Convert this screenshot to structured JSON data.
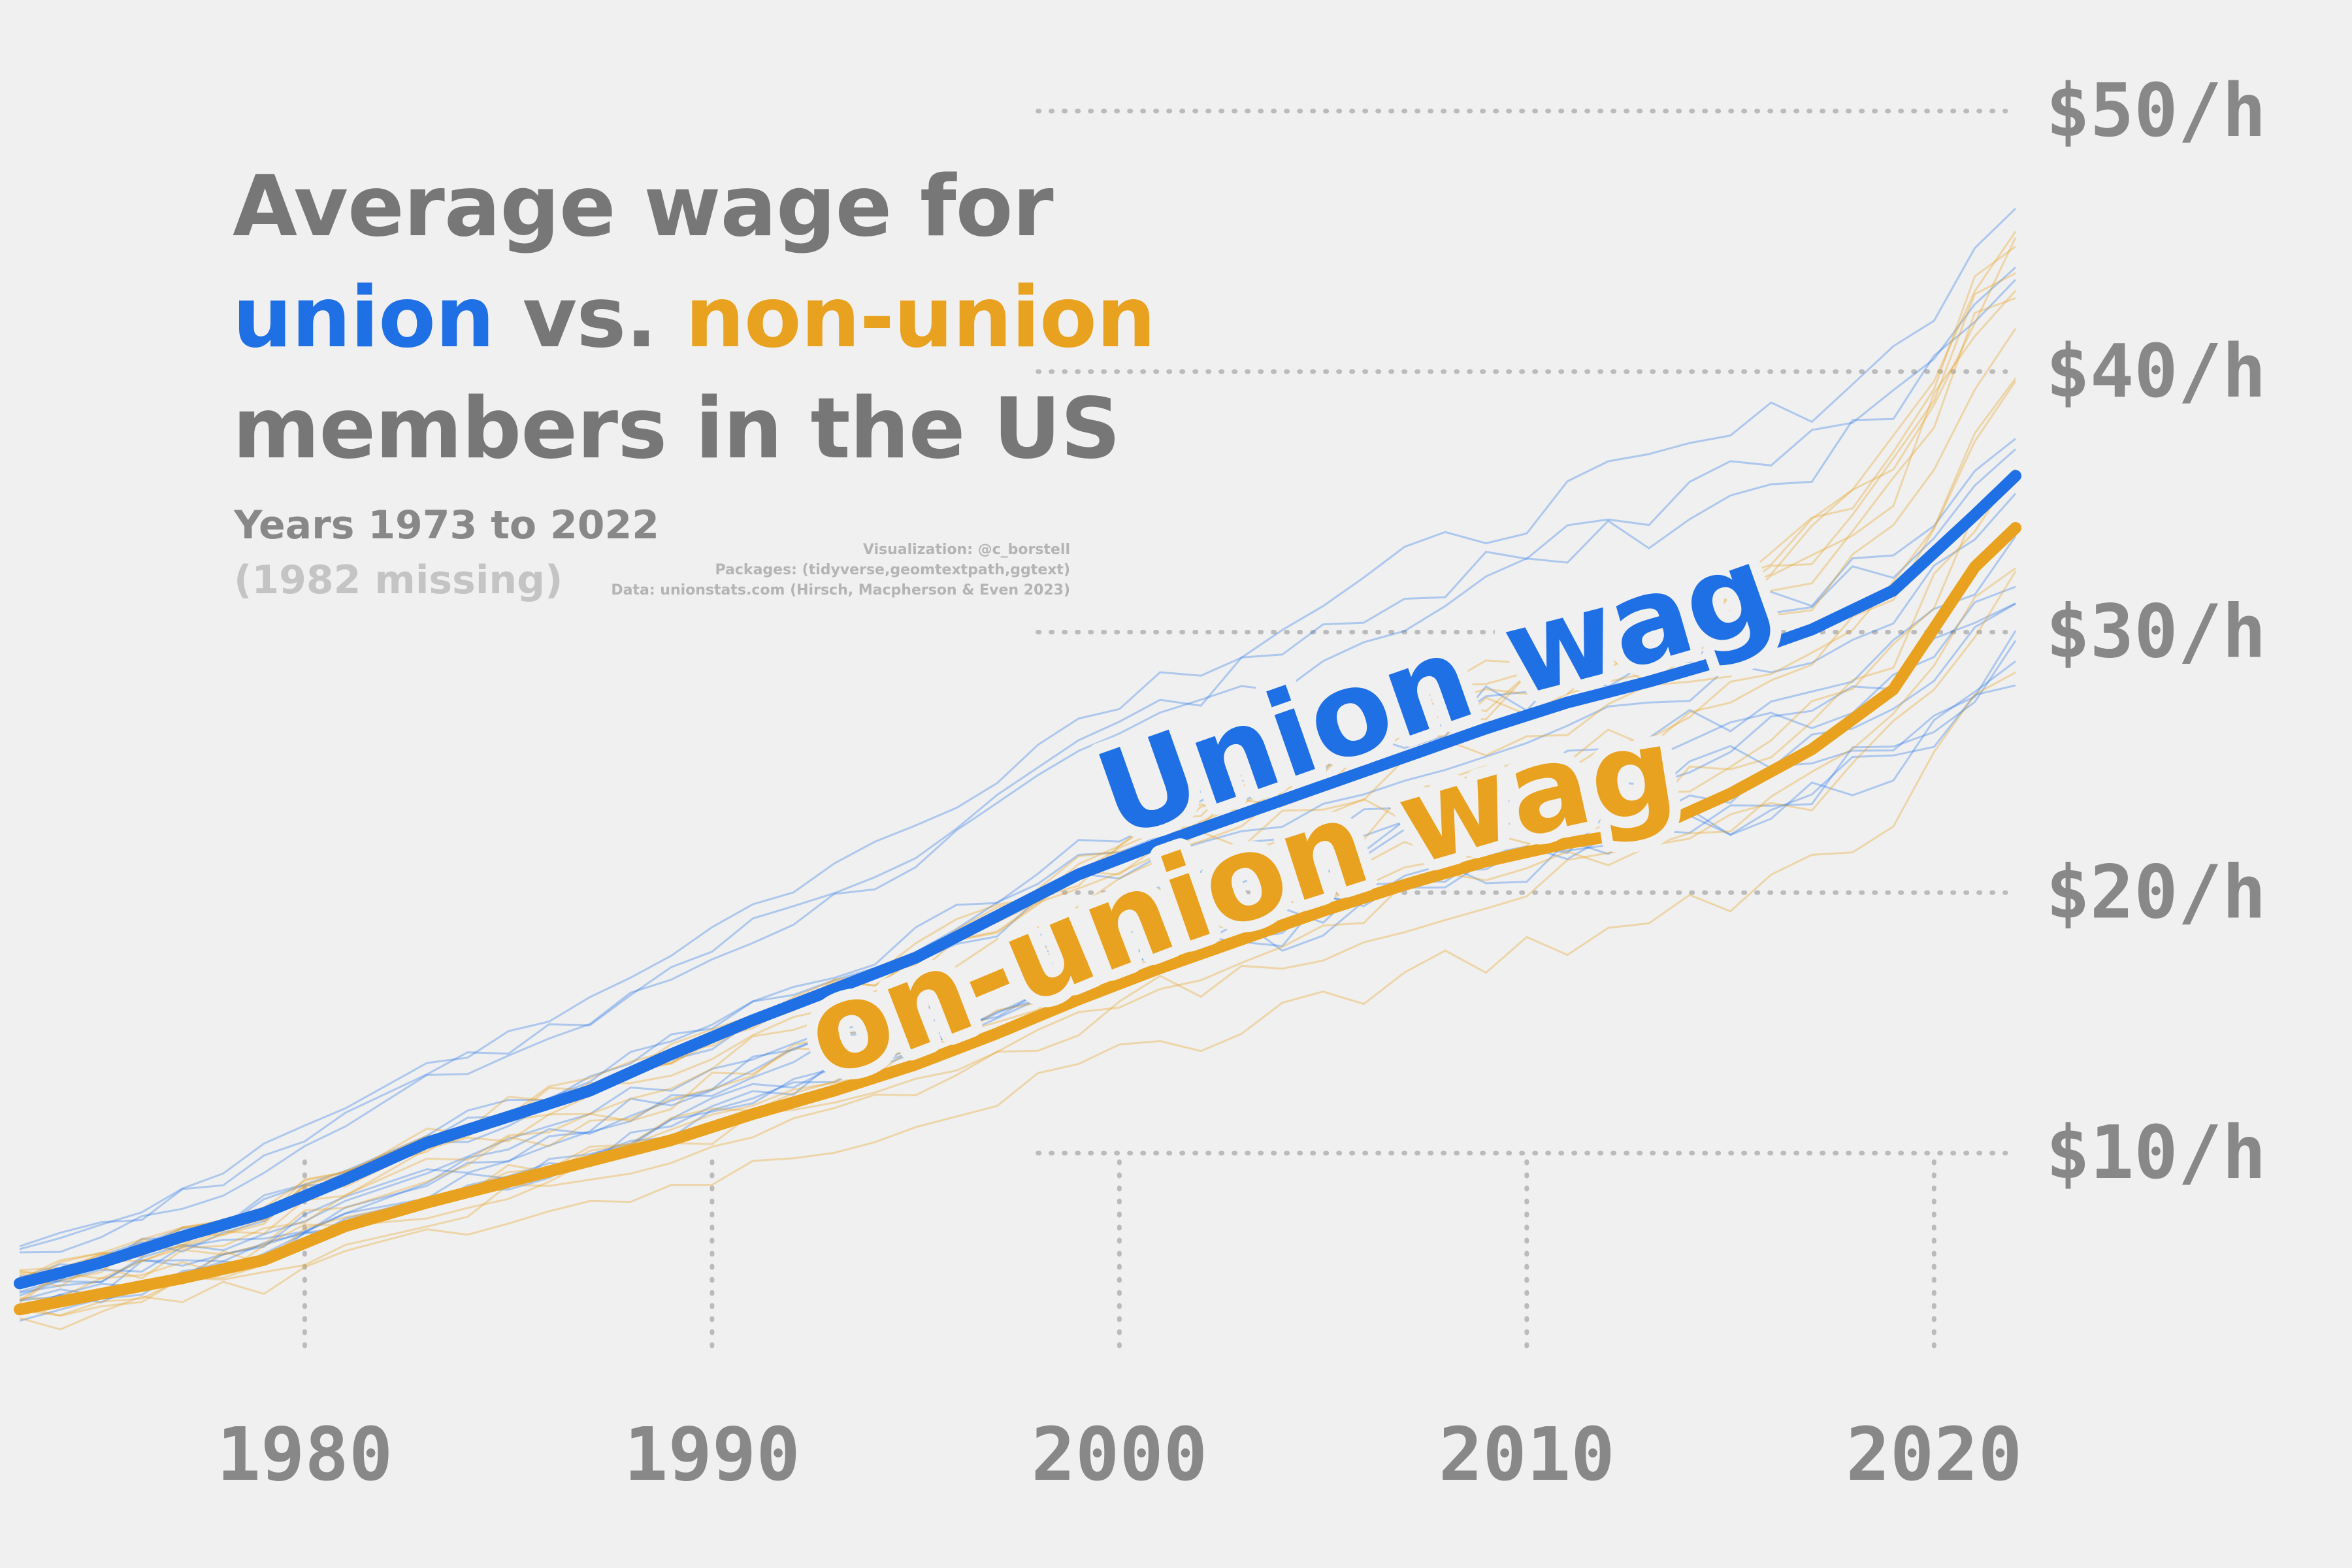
{
  "title": {
    "line1": "Average wage for",
    "union_word": "union",
    "vs_word": " vs. ",
    "nonunion_word": "non-union",
    "line3": "members in the US"
  },
  "subtitle": {
    "years": "Years 1973 to 2022",
    "missing": "(1982 missing)"
  },
  "credits": {
    "viz": "Visualization: @c_borstell",
    "packages": "Packages: (tidyverse,geomtextpath,ggtext)",
    "data": "Data: unionstats.com (Hirsch, Macpherson & Even 2023)"
  },
  "colors": {
    "background": "#f0f0f0",
    "union": "#1f6fe5",
    "nonunion": "#e9a21f",
    "axis_text": "#888888",
    "grid": "#bbbbbb"
  },
  "chart_data": {
    "type": "line",
    "x_ticks": [
      1980,
      1990,
      2000,
      2010,
      2020
    ],
    "y_ticks": [
      10,
      20,
      30,
      40,
      50
    ],
    "y_tick_labels": [
      "$10/h",
      "$20/h",
      "$30/h",
      "$40/h",
      "$50/h"
    ],
    "x_tick_labels": [
      "1980",
      "1990",
      "2000",
      "2010",
      "2020"
    ],
    "xlim": [
      1973,
      2022
    ],
    "ylim": [
      2,
      50
    ],
    "grid": "dotted",
    "series": [
      {
        "name": "Union wage",
        "color": "#1f6fe5",
        "x": [
          1973,
          1975,
          1977,
          1979,
          1981,
          1983,
          1985,
          1987,
          1989,
          1991,
          1993,
          1995,
          1997,
          1999,
          2001,
          2003,
          2005,
          2007,
          2009,
          2011,
          2013,
          2015,
          2017,
          2019,
          2021,
          2022
        ],
        "values": [
          5.0,
          5.8,
          6.8,
          7.7,
          9.0,
          10.4,
          11.4,
          12.4,
          13.8,
          15.1,
          16.3,
          17.5,
          19.1,
          20.7,
          21.9,
          23.0,
          24.1,
          25.2,
          26.3,
          27.3,
          28.1,
          29.0,
          30.1,
          31.6,
          34.5,
          36.0
        ]
      },
      {
        "name": "Non-union wage",
        "color": "#e9a21f",
        "x": [
          1973,
          1975,
          1977,
          1979,
          1981,
          1983,
          1985,
          1987,
          1989,
          1991,
          1993,
          1995,
          1997,
          1999,
          2001,
          2003,
          2005,
          2007,
          2009,
          2011,
          2013,
          2015,
          2017,
          2019,
          2021,
          2022
        ],
        "values": [
          4.0,
          4.6,
          5.2,
          5.9,
          7.2,
          8.1,
          8.9,
          9.7,
          10.5,
          11.5,
          12.4,
          13.4,
          14.6,
          15.9,
          17.1,
          18.2,
          19.3,
          20.3,
          21.2,
          21.9,
          22.4,
          23.8,
          25.5,
          27.8,
          32.5,
          34.0
        ]
      }
    ]
  }
}
